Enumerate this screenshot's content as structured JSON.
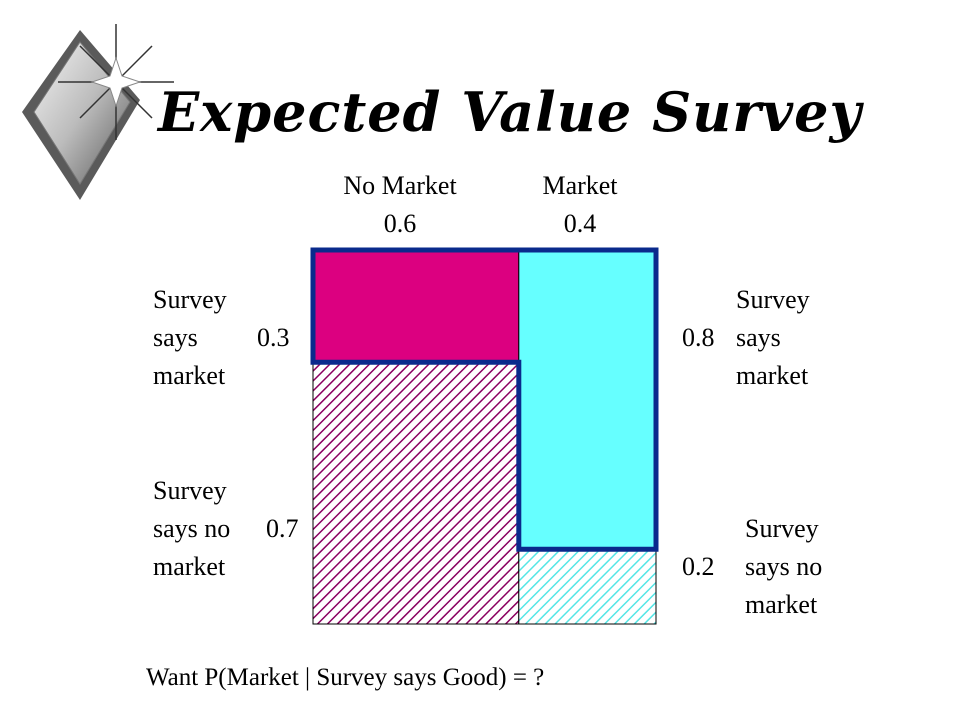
{
  "title": "Expected Value Survey",
  "columns": [
    {
      "label": "No Market",
      "prob": "0.6"
    },
    {
      "label": "Market",
      "prob": "0.4"
    }
  ],
  "left_labels": {
    "top": {
      "line1": "Survey",
      "line2": "says",
      "prob": "0.3",
      "line3": "market"
    },
    "bottom": {
      "line1": "Survey",
      "line2": "says no",
      "prob": "0.7",
      "line3": "market"
    }
  },
  "right_labels": {
    "top": {
      "prob": "0.8",
      "line1": "Survey",
      "line2": "says",
      "line3": "market"
    },
    "bottom": {
      "prob": "0.2",
      "line1": "Survey",
      "line2": "says no",
      "line3": "market"
    }
  },
  "question": "Want P(Market | Survey says Good) = ?",
  "chart_data": {
    "type": "mosaic",
    "columns": [
      {
        "name": "No Market",
        "width": 0.6,
        "survey_says_market": 0.3,
        "survey_says_no_market": 0.7
      },
      {
        "name": "Market",
        "width": 0.4,
        "survey_says_market": 0.8,
        "survey_says_no_market": 0.2
      }
    ]
  },
  "colors": {
    "no_market_says_market": "#dc0080",
    "no_market_hatch": "#8a0060",
    "market_says_market": "#66ffff",
    "market_hatch": "#55e6e6",
    "outline": "#0a2a8c"
  }
}
